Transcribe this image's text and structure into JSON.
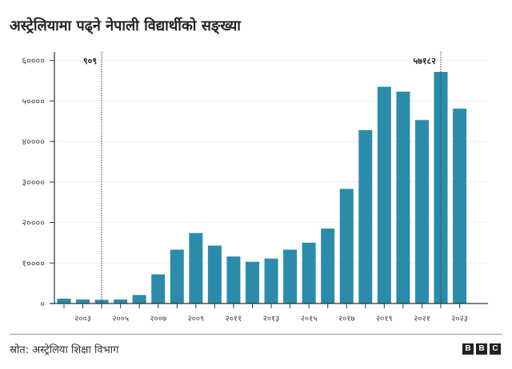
{
  "title": "अस्ट्रेलियामा पढ्ने नेपाली विद्यार्थीको सङ्ख्या",
  "source": "स्रोत: अस्ट्रेलिया शिक्षा विभाग",
  "logo": "BBC",
  "colors": {
    "bar": "#2a8caa",
    "grid": "#eeeeee",
    "axis": "#333333"
  },
  "chart_data": {
    "type": "bar",
    "title": "अस्ट्रेलियामा पढ्ने नेपाली विद्यार्थीको सङ्ख्या",
    "categories": [
      "२००२",
      "२००३",
      "२००४",
      "२००५",
      "२००६",
      "२००७",
      "२००८",
      "२००९",
      "२०१०",
      "२०११",
      "२०१२",
      "२०१३",
      "२०१४",
      "२०१५",
      "२०१६",
      "२०१७",
      "२०१८",
      "२०१९",
      "२०२०",
      "२०२१",
      "२०२२",
      "२०२३"
    ],
    "values": [
      1200,
      1000,
      909,
      1000,
      2100,
      7200,
      13300,
      17400,
      14300,
      11600,
      10300,
      11100,
      13300,
      15000,
      18500,
      28300,
      42800,
      53500,
      52300,
      45300,
      57182,
      48100
    ],
    "x_tick_labels": [
      "२००३",
      "२००५",
      "२००७",
      "२००९",
      "२०११",
      "२०१३",
      "२०१५",
      "२०१७",
      "२०१९",
      "२०२१",
      "२०२३"
    ],
    "y_tick_labels": [
      "०",
      "१००००",
      "२००००",
      "३००००",
      "४००००",
      "५००००",
      "६००००"
    ],
    "y_ticks": [
      0,
      10000,
      20000,
      30000,
      40000,
      50000,
      60000
    ],
    "ylim": [
      0,
      60000
    ],
    "grid": true,
    "annotations": [
      {
        "category": "२००४",
        "label": "९०९"
      },
      {
        "category": "२०२२",
        "label": "५७१८२"
      }
    ]
  }
}
